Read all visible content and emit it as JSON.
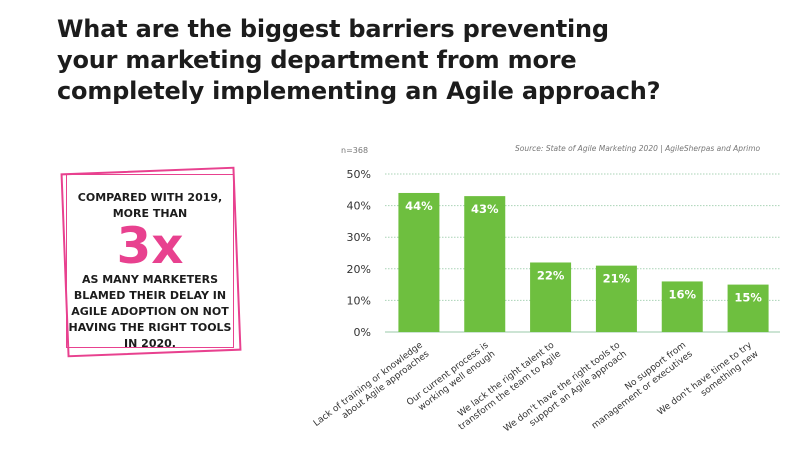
{
  "title": "What are the biggest barriers preventing your marketing department from more completely implementing an Agile approach?",
  "callout": {
    "top_text": "COMPARED WITH 2019, MORE THAN",
    "big_text": "3x",
    "bottom_text": "AS MANY MARKETERS BLAMED THEIR DELAY IN AGILE ADOPTION ON NOT HAVING THE RIGHT TOOLS IN 2020."
  },
  "source": "Source: State of Agile Marketing 2020 | AgileSherpas and Aprimo",
  "n_label": "n=368",
  "colors": {
    "bar": "#6ebf3f",
    "accent": "#e8418f",
    "grid": "#a9d3b6"
  },
  "chart_data": {
    "type": "bar",
    "categories": [
      [
        "Lack of training or knowledge",
        "about Agile approaches"
      ],
      [
        "Our current process is",
        "working well enough"
      ],
      [
        "We lack the right talent to",
        "transform the team to Agile"
      ],
      [
        "We don't have the right tools to",
        "support an Agile approach"
      ],
      [
        "No support from",
        "management or executives"
      ],
      [
        "We don't have time to try",
        "something new"
      ]
    ],
    "values": [
      44,
      43,
      22,
      21,
      16,
      15
    ],
    "value_labels": [
      "44%",
      "43%",
      "22%",
      "21%",
      "16%",
      "15%"
    ],
    "ylim": [
      0,
      50
    ],
    "yticks": [
      "0%",
      "10%",
      "20%",
      "30%",
      "40%",
      "50%"
    ],
    "grid": true
  }
}
